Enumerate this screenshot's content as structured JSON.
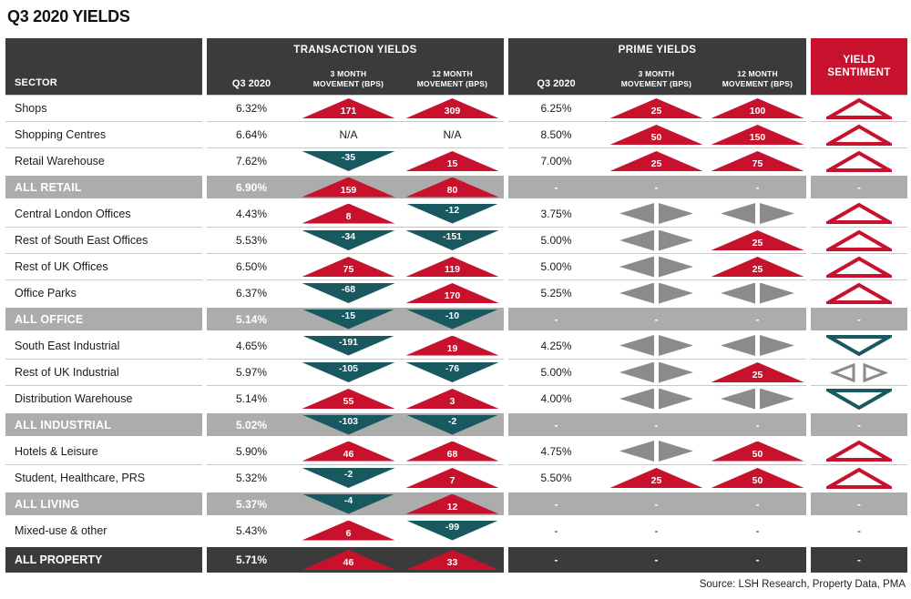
{
  "title": "Q3 2020 YIELDS",
  "source": "Source: LSH Research, Property Data, PMA",
  "colors": {
    "red": "#c8122d",
    "teal": "#17595f",
    "dark": "#3b3b3b",
    "gray_row": "#acacac",
    "gray_tri": "#8b8b8b",
    "separator": "#c9c9c9"
  },
  "header": {
    "sector": "SECTOR",
    "transaction_group": "TRANSACTION YIELDS",
    "prime_group": "PRIME YIELDS",
    "q3_label": "Q3 2020",
    "m3_line1": "3 MONTH",
    "m3_line2": "MOVEMENT (BPS)",
    "m12_line1": "12 MONTH",
    "m12_line2": "MOVEMENT (BPS)",
    "sentiment_line1": "YIELD",
    "sentiment_line2": "SENTIMENT"
  },
  "legend_semantics": {
    "up": "red filled triangle up = yield rose (bps)",
    "down": "teal filled triangle down = yield fell (bps)",
    "side": "gray left/right triangles = no movement",
    "sentiment_up": "hollow red triangle up",
    "sentiment_down": "hollow teal triangle down",
    "sentiment_side": "hollow gray left/right triangles"
  },
  "chart_data": {
    "type": "table",
    "columns": [
      "Sector",
      "Transaction Q3 2020",
      "Transaction 3 Month Movement (bps)",
      "Transaction 12 Month Movement (bps)",
      "Prime Q3 2020",
      "Prime 3 Month Movement (bps)",
      "Prime 12 Month Movement (bps)",
      "Yield Sentiment"
    ],
    "rows": [
      {
        "sector": "Shops",
        "style": "normal",
        "t_q3": "6.32%",
        "t_m3": {
          "dir": "up",
          "value": "171"
        },
        "t_m12": {
          "dir": "up",
          "value": "309"
        },
        "p_q3": "6.25%",
        "p_m3": {
          "dir": "up",
          "value": "25"
        },
        "p_m12": {
          "dir": "up",
          "value": "100"
        },
        "sentiment": "up"
      },
      {
        "sector": "Shopping Centres",
        "style": "normal",
        "t_q3": "6.64%",
        "t_m3": {
          "dir": "text",
          "value": "N/A"
        },
        "t_m12": {
          "dir": "text",
          "value": "N/A"
        },
        "p_q3": "8.50%",
        "p_m3": {
          "dir": "up",
          "value": "50"
        },
        "p_m12": {
          "dir": "up",
          "value": "150"
        },
        "sentiment": "up"
      },
      {
        "sector": "Retail Warehouse",
        "style": "normal",
        "t_q3": "7.62%",
        "t_m3": {
          "dir": "down",
          "value": "-35"
        },
        "t_m12": {
          "dir": "up",
          "value": "15"
        },
        "p_q3": "7.00%",
        "p_m3": {
          "dir": "up",
          "value": "25"
        },
        "p_m12": {
          "dir": "up",
          "value": "75"
        },
        "sentiment": "up"
      },
      {
        "sector": "ALL RETAIL",
        "style": "subtotal",
        "t_q3": "6.90%",
        "t_m3": {
          "dir": "up",
          "value": "159"
        },
        "t_m12": {
          "dir": "up",
          "value": "80"
        },
        "p_q3": "-",
        "p_m3": {
          "dir": "text",
          "value": "-"
        },
        "p_m12": {
          "dir": "text",
          "value": "-"
        },
        "sentiment": "-"
      },
      {
        "sector": "Central London Offices",
        "style": "normal",
        "t_q3": "4.43%",
        "t_m3": {
          "dir": "up",
          "value": "8"
        },
        "t_m12": {
          "dir": "down",
          "value": "-12"
        },
        "p_q3": "3.75%",
        "p_m3": {
          "dir": "side",
          "value": ""
        },
        "p_m12": {
          "dir": "side",
          "value": ""
        },
        "sentiment": "up"
      },
      {
        "sector": "Rest of South East Offices",
        "style": "normal",
        "t_q3": "5.53%",
        "t_m3": {
          "dir": "down",
          "value": "-34"
        },
        "t_m12": {
          "dir": "down",
          "value": "-151"
        },
        "p_q3": "5.00%",
        "p_m3": {
          "dir": "side",
          "value": ""
        },
        "p_m12": {
          "dir": "up",
          "value": "25"
        },
        "sentiment": "up"
      },
      {
        "sector": "Rest of UK Offices",
        "style": "normal",
        "t_q3": "6.50%",
        "t_m3": {
          "dir": "up",
          "value": "75"
        },
        "t_m12": {
          "dir": "up",
          "value": "119"
        },
        "p_q3": "5.00%",
        "p_m3": {
          "dir": "side",
          "value": ""
        },
        "p_m12": {
          "dir": "up",
          "value": "25"
        },
        "sentiment": "up"
      },
      {
        "sector": "Office Parks",
        "style": "normal",
        "t_q3": "6.37%",
        "t_m3": {
          "dir": "down",
          "value": "-68"
        },
        "t_m12": {
          "dir": "up",
          "value": "170"
        },
        "p_q3": "5.25%",
        "p_m3": {
          "dir": "side",
          "value": ""
        },
        "p_m12": {
          "dir": "side",
          "value": ""
        },
        "sentiment": "up"
      },
      {
        "sector": "ALL OFFICE",
        "style": "subtotal",
        "t_q3": "5.14%",
        "t_m3": {
          "dir": "down",
          "value": "-15"
        },
        "t_m12": {
          "dir": "down",
          "value": "-10"
        },
        "p_q3": "-",
        "p_m3": {
          "dir": "text",
          "value": "-"
        },
        "p_m12": {
          "dir": "text",
          "value": "-"
        },
        "sentiment": "-"
      },
      {
        "sector": "South East Industrial",
        "style": "normal",
        "t_q3": "4.65%",
        "t_m3": {
          "dir": "down",
          "value": "-191"
        },
        "t_m12": {
          "dir": "up",
          "value": "19"
        },
        "p_q3": "4.25%",
        "p_m3": {
          "dir": "side",
          "value": ""
        },
        "p_m12": {
          "dir": "side",
          "value": ""
        },
        "sentiment": "down"
      },
      {
        "sector": "Rest of UK Industrial",
        "style": "normal",
        "t_q3": "5.97%",
        "t_m3": {
          "dir": "down",
          "value": "-105"
        },
        "t_m12": {
          "dir": "down",
          "value": "-76"
        },
        "p_q3": "5.00%",
        "p_m3": {
          "dir": "side",
          "value": ""
        },
        "p_m12": {
          "dir": "up",
          "value": "25"
        },
        "sentiment": "side"
      },
      {
        "sector": "Distribution Warehouse",
        "style": "normal",
        "t_q3": "5.14%",
        "t_m3": {
          "dir": "up",
          "value": "55"
        },
        "t_m12": {
          "dir": "up",
          "value": "3"
        },
        "p_q3": "4.00%",
        "p_m3": {
          "dir": "side",
          "value": ""
        },
        "p_m12": {
          "dir": "side",
          "value": ""
        },
        "sentiment": "down"
      },
      {
        "sector": "ALL INDUSTRIAL",
        "style": "subtotal",
        "t_q3": "5.02%",
        "t_m3": {
          "dir": "down",
          "value": "-103"
        },
        "t_m12": {
          "dir": "down",
          "value": "-2"
        },
        "p_q3": "-",
        "p_m3": {
          "dir": "text",
          "value": "-"
        },
        "p_m12": {
          "dir": "text",
          "value": "-"
        },
        "sentiment": "-"
      },
      {
        "sector": "Hotels & Leisure",
        "style": "normal",
        "t_q3": "5.90%",
        "t_m3": {
          "dir": "up",
          "value": "46"
        },
        "t_m12": {
          "dir": "up",
          "value": "68"
        },
        "p_q3": "4.75%",
        "p_m3": {
          "dir": "side",
          "value": ""
        },
        "p_m12": {
          "dir": "up",
          "value": "50"
        },
        "sentiment": "up"
      },
      {
        "sector": "Student, Healthcare, PRS",
        "style": "normal",
        "t_q3": "5.32%",
        "t_m3": {
          "dir": "down",
          "value": "-2"
        },
        "t_m12": {
          "dir": "up",
          "value": "7"
        },
        "p_q3": "5.50%",
        "p_m3": {
          "dir": "up",
          "value": "25"
        },
        "p_m12": {
          "dir": "up",
          "value": "50"
        },
        "sentiment": "up"
      },
      {
        "sector": "ALL LIVING",
        "style": "subtotal",
        "t_q3": "5.37%",
        "t_m3": {
          "dir": "down",
          "value": "-4"
        },
        "t_m12": {
          "dir": "up",
          "value": "12"
        },
        "p_q3": "-",
        "p_m3": {
          "dir": "text",
          "value": "-"
        },
        "p_m12": {
          "dir": "text",
          "value": "-"
        },
        "sentiment": "-"
      },
      {
        "sector": "Mixed-use & other",
        "style": "normal",
        "t_q3": "5.43%",
        "t_m3": {
          "dir": "up",
          "value": "6"
        },
        "t_m12": {
          "dir": "down",
          "value": "-99"
        },
        "p_q3": "-",
        "p_m3": {
          "dir": "text",
          "value": "-"
        },
        "p_m12": {
          "dir": "text",
          "value": "-"
        },
        "sentiment": "-"
      },
      {
        "sector": "ALL PROPERTY",
        "style": "total",
        "t_q3": "5.71%",
        "t_m3": {
          "dir": "up",
          "value": "46"
        },
        "t_m12": {
          "dir": "up",
          "value": "33"
        },
        "p_q3": "-",
        "p_m3": {
          "dir": "text",
          "value": "-"
        },
        "p_m12": {
          "dir": "text",
          "value": "-"
        },
        "sentiment": "-"
      }
    ]
  }
}
